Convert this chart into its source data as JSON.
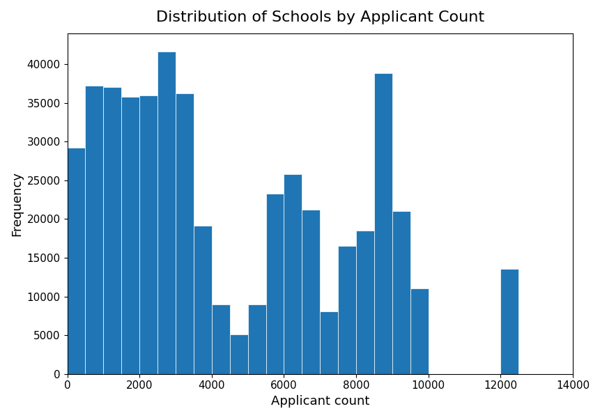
{
  "title": "Distribution of Schools by Applicant Count",
  "xlabel": "Applicant count",
  "ylabel": "Frequency",
  "bar_color": "#2076b4",
  "bin_width": 500,
  "bins_left_edges": [
    0,
    500,
    1000,
    1500,
    2000,
    2500,
    3000,
    3500,
    4000,
    4500,
    5000,
    5500,
    6000,
    6500,
    7000,
    7500,
    8000,
    8500,
    9000,
    9500,
    10000,
    10500,
    11000,
    11500,
    12000,
    12500,
    13000,
    13500
  ],
  "bar_heights": [
    29200,
    37200,
    37000,
    35800,
    36000,
    41600,
    36200,
    19100,
    9000,
    5100,
    9000,
    23300,
    25800,
    21200,
    8100,
    16500,
    18500,
    38800,
    21000,
    11000,
    0,
    0,
    0,
    0,
    13600,
    0,
    0,
    0
  ],
  "xlim": [
    0,
    14000
  ],
  "ylim": [
    0,
    44000
  ],
  "yticks": [
    0,
    5000,
    10000,
    15000,
    20000,
    25000,
    30000,
    35000,
    40000
  ],
  "xticks": [
    0,
    2000,
    4000,
    6000,
    8000,
    10000,
    12000,
    14000
  ],
  "title_fontsize": 16,
  "label_fontsize": 13,
  "tick_fontsize": 11
}
